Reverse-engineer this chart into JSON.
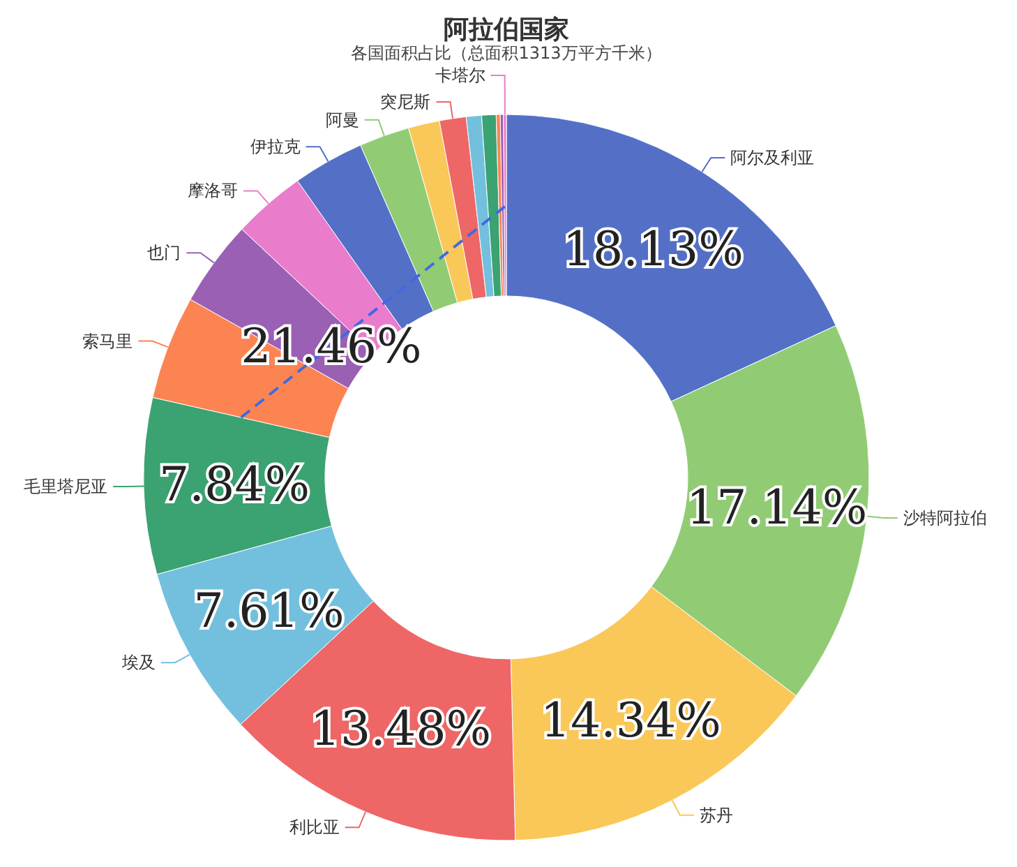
{
  "chart_data": {
    "type": "donut",
    "title": "阿拉伯国家",
    "subtitle": "各国面积占比（总面积1313万平方千米）",
    "categories": [
      "阿尔及利亚",
      "沙特阿拉伯",
      "苏丹",
      "利比亚",
      "埃及",
      "毛里塔尼亚",
      "索马里",
      "也门",
      "摩洛哥",
      "伊拉克",
      "阿曼",
      null,
      "突尼斯",
      null,
      null,
      null,
      null,
      "卡塔尔"
    ],
    "values": [
      18.13,
      17.14,
      14.34,
      13.48,
      7.61,
      7.84,
      4.62,
      3.83,
      3.24,
      3.18,
      2.24,
      1.39,
      1.19,
      0.68,
      0.64,
      0.18,
      0.14,
      0.13
    ],
    "colors": [
      "#5470c6",
      "#91cc75",
      "#fac858",
      "#ee6666",
      "#73c0de",
      "#3ba272",
      "#fc8452",
      "#9a60b4",
      "#ea7ccc",
      "#5470c6",
      "#91cc75",
      "#fac858",
      "#ee6666",
      "#73c0de",
      "#3ba272",
      "#fc8452",
      "#9a60b4",
      "#ea7ccc"
    ],
    "value_labels": [
      "18.13%",
      "17.14%",
      "14.34%",
      "13.48%",
      "7.61%",
      "7.84%",
      null,
      null,
      null,
      null,
      null,
      null,
      null,
      null,
      null,
      null,
      null,
      null
    ],
    "annotations": [
      "21.46%"
    ]
  }
}
